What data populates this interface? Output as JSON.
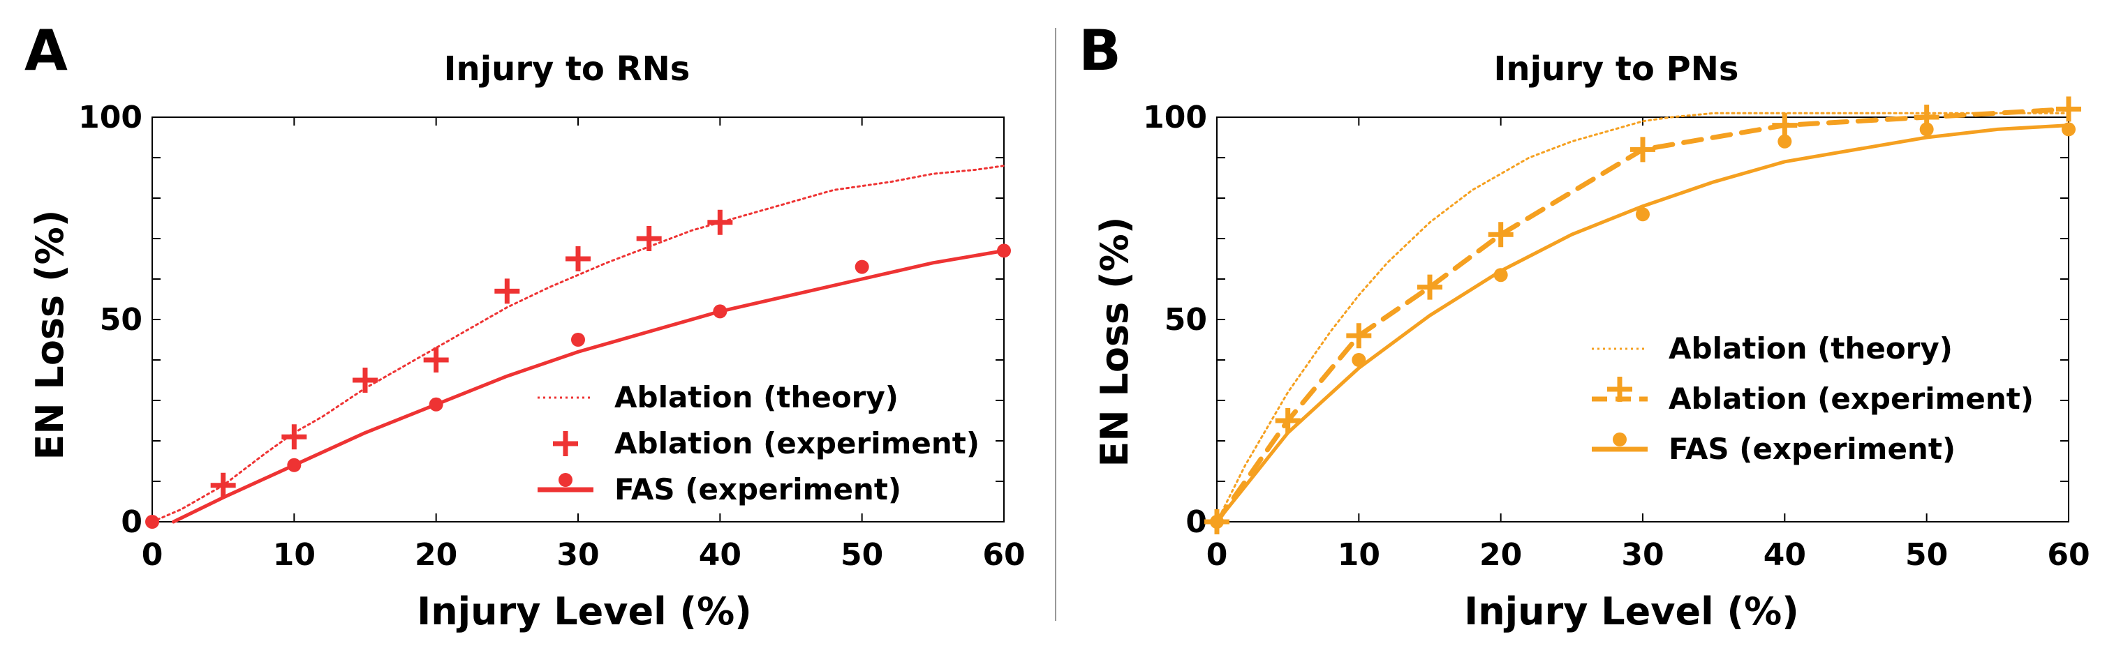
{
  "chart_data": [
    {
      "type": "line",
      "panel_letter": "A",
      "title": "Injury to RNs",
      "xlabel": "Injury Level (%)",
      "ylabel": "EN Loss (%)",
      "xlim": [
        0,
        60
      ],
      "ylim": [
        0,
        100
      ],
      "xticks": [
        "0",
        "10",
        "20",
        "30",
        "40",
        "50",
        "60"
      ],
      "yticks": [
        "0",
        "50",
        "100"
      ],
      "color": "#ee3333",
      "legend_position": "bottom-right",
      "series": [
        {
          "name": "Ablation (theory)",
          "style": "dotted",
          "x": [
            0,
            2,
            5,
            8,
            10,
            12,
            15,
            18,
            20,
            22,
            25,
            28,
            30,
            32,
            35,
            38,
            40,
            42,
            45,
            48,
            50,
            52,
            55,
            58,
            60
          ],
          "y": [
            0,
            3,
            9,
            17,
            22,
            26,
            33,
            39,
            43,
            47,
            53,
            58,
            61,
            64,
            68,
            72,
            74,
            76,
            79,
            82,
            83,
            84,
            86,
            87,
            88
          ]
        },
        {
          "name": "Ablation (experiment)",
          "marker": "plus",
          "x": [
            5,
            10,
            15,
            20,
            25,
            30,
            35,
            40
          ],
          "y": [
            9,
            21,
            35,
            40,
            57,
            65,
            70,
            74
          ]
        },
        {
          "name": "FAS (experiment)",
          "style": "solid",
          "marker": "circle",
          "x": [
            0,
            10,
            20,
            30,
            40,
            50,
            60
          ],
          "y": [
            0,
            14,
            29,
            45,
            52,
            63,
            67
          ],
          "fit_x": [
            1.5,
            5,
            10,
            15,
            20,
            25,
            30,
            35,
            40,
            45,
            50,
            55,
            60
          ],
          "fit_y": [
            0,
            6,
            14,
            22,
            29,
            36,
            42,
            47,
            52,
            56,
            60,
            64,
            67
          ]
        }
      ]
    },
    {
      "type": "line",
      "panel_letter": "B",
      "title": "Injury to PNs",
      "xlabel": "Injury Level (%)",
      "ylabel": "EN Loss (%)",
      "xlim": [
        0,
        60
      ],
      "ylim": [
        0,
        100
      ],
      "xticks": [
        "0",
        "10",
        "20",
        "30",
        "40",
        "50",
        "60"
      ],
      "yticks": [
        "0",
        "50",
        "100"
      ],
      "color": "#f5a020",
      "legend_position": "center-right",
      "series": [
        {
          "name": "Ablation (theory)",
          "style": "dotted",
          "x": [
            0,
            2,
            5,
            8,
            10,
            12,
            15,
            18,
            20,
            22,
            25,
            28,
            30,
            32,
            35,
            38,
            40,
            45,
            50,
            55,
            60
          ],
          "y": [
            0,
            14,
            32,
            47,
            56,
            64,
            74,
            82,
            86,
            90,
            94,
            97,
            99,
            100,
            101,
            101,
            101,
            101,
            101,
            101,
            101
          ]
        },
        {
          "name": "Ablation (experiment)",
          "style": "dashed",
          "marker": "plus",
          "x": [
            0,
            5,
            10,
            15,
            20,
            30,
            40,
            50,
            60
          ],
          "y": [
            0,
            25,
            46,
            58,
            71,
            92,
            98,
            100,
            102
          ]
        },
        {
          "name": "FAS (experiment)",
          "style": "solid",
          "marker": "circle",
          "x": [
            0,
            10,
            20,
            30,
            40,
            50,
            60
          ],
          "y": [
            0,
            40,
            61,
            76,
            94,
            97,
            97
          ],
          "fit_x": [
            0,
            5,
            10,
            15,
            20,
            25,
            30,
            35,
            40,
            45,
            50,
            55,
            60
          ],
          "fit_y": [
            0,
            22,
            38,
            51,
            62,
            71,
            78,
            84,
            89,
            92,
            95,
            97,
            98
          ]
        }
      ]
    }
  ]
}
